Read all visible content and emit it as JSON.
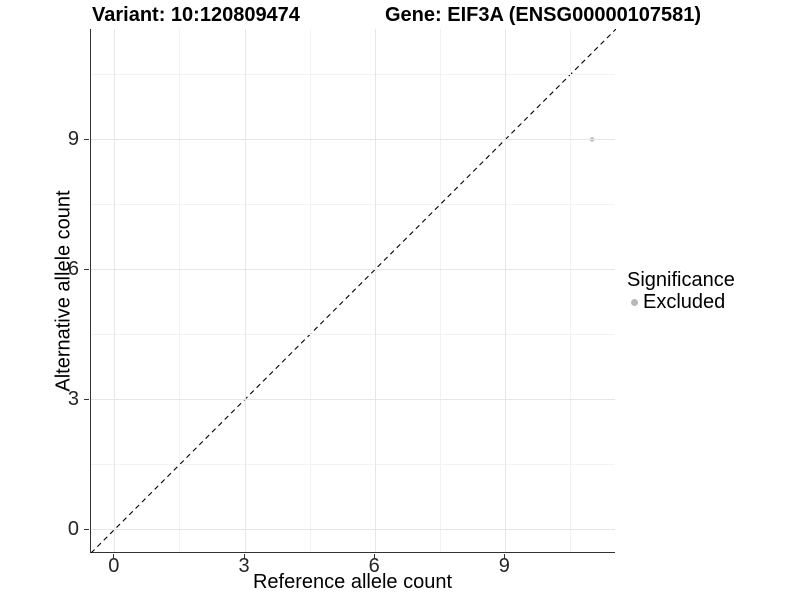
{
  "chart_data": {
    "type": "scatter",
    "title_left": "Variant: 10:120809474",
    "title_right": "Gene: EIF3A (ENSG00000107581)",
    "xlabel": "Reference allele count",
    "ylabel": "Alternative allele count",
    "xlim": [
      -0.55,
      11.55
    ],
    "ylim": [
      -0.55,
      11.55
    ],
    "xticks": [
      0,
      3,
      6,
      9
    ],
    "yticks": [
      0,
      3,
      6,
      9
    ],
    "xminor": [
      1.5,
      4.5,
      7.5,
      10.5
    ],
    "yminor": [
      1.5,
      4.5,
      7.5,
      10.5
    ],
    "grid": "major and minor gridlines on white panel",
    "points": [
      {
        "x": 11,
        "y": 9,
        "significance": "Excluded"
      }
    ],
    "identity_line": {
      "style": "dashed",
      "color": "#000000",
      "from": [
        -0.55,
        -0.55
      ],
      "to": [
        11.55,
        11.55
      ]
    },
    "legend": {
      "title": "Significance",
      "position": "right",
      "items": [
        {
          "label": "Excluded",
          "color": "#b8b8b8"
        }
      ]
    },
    "colors": {
      "point": "#c2c2c2",
      "grid_major": "#e6e6e6",
      "grid_minor": "#f2f2f2",
      "axis_line": "#333333",
      "tick_label": "#262626",
      "text": "#000000"
    }
  }
}
